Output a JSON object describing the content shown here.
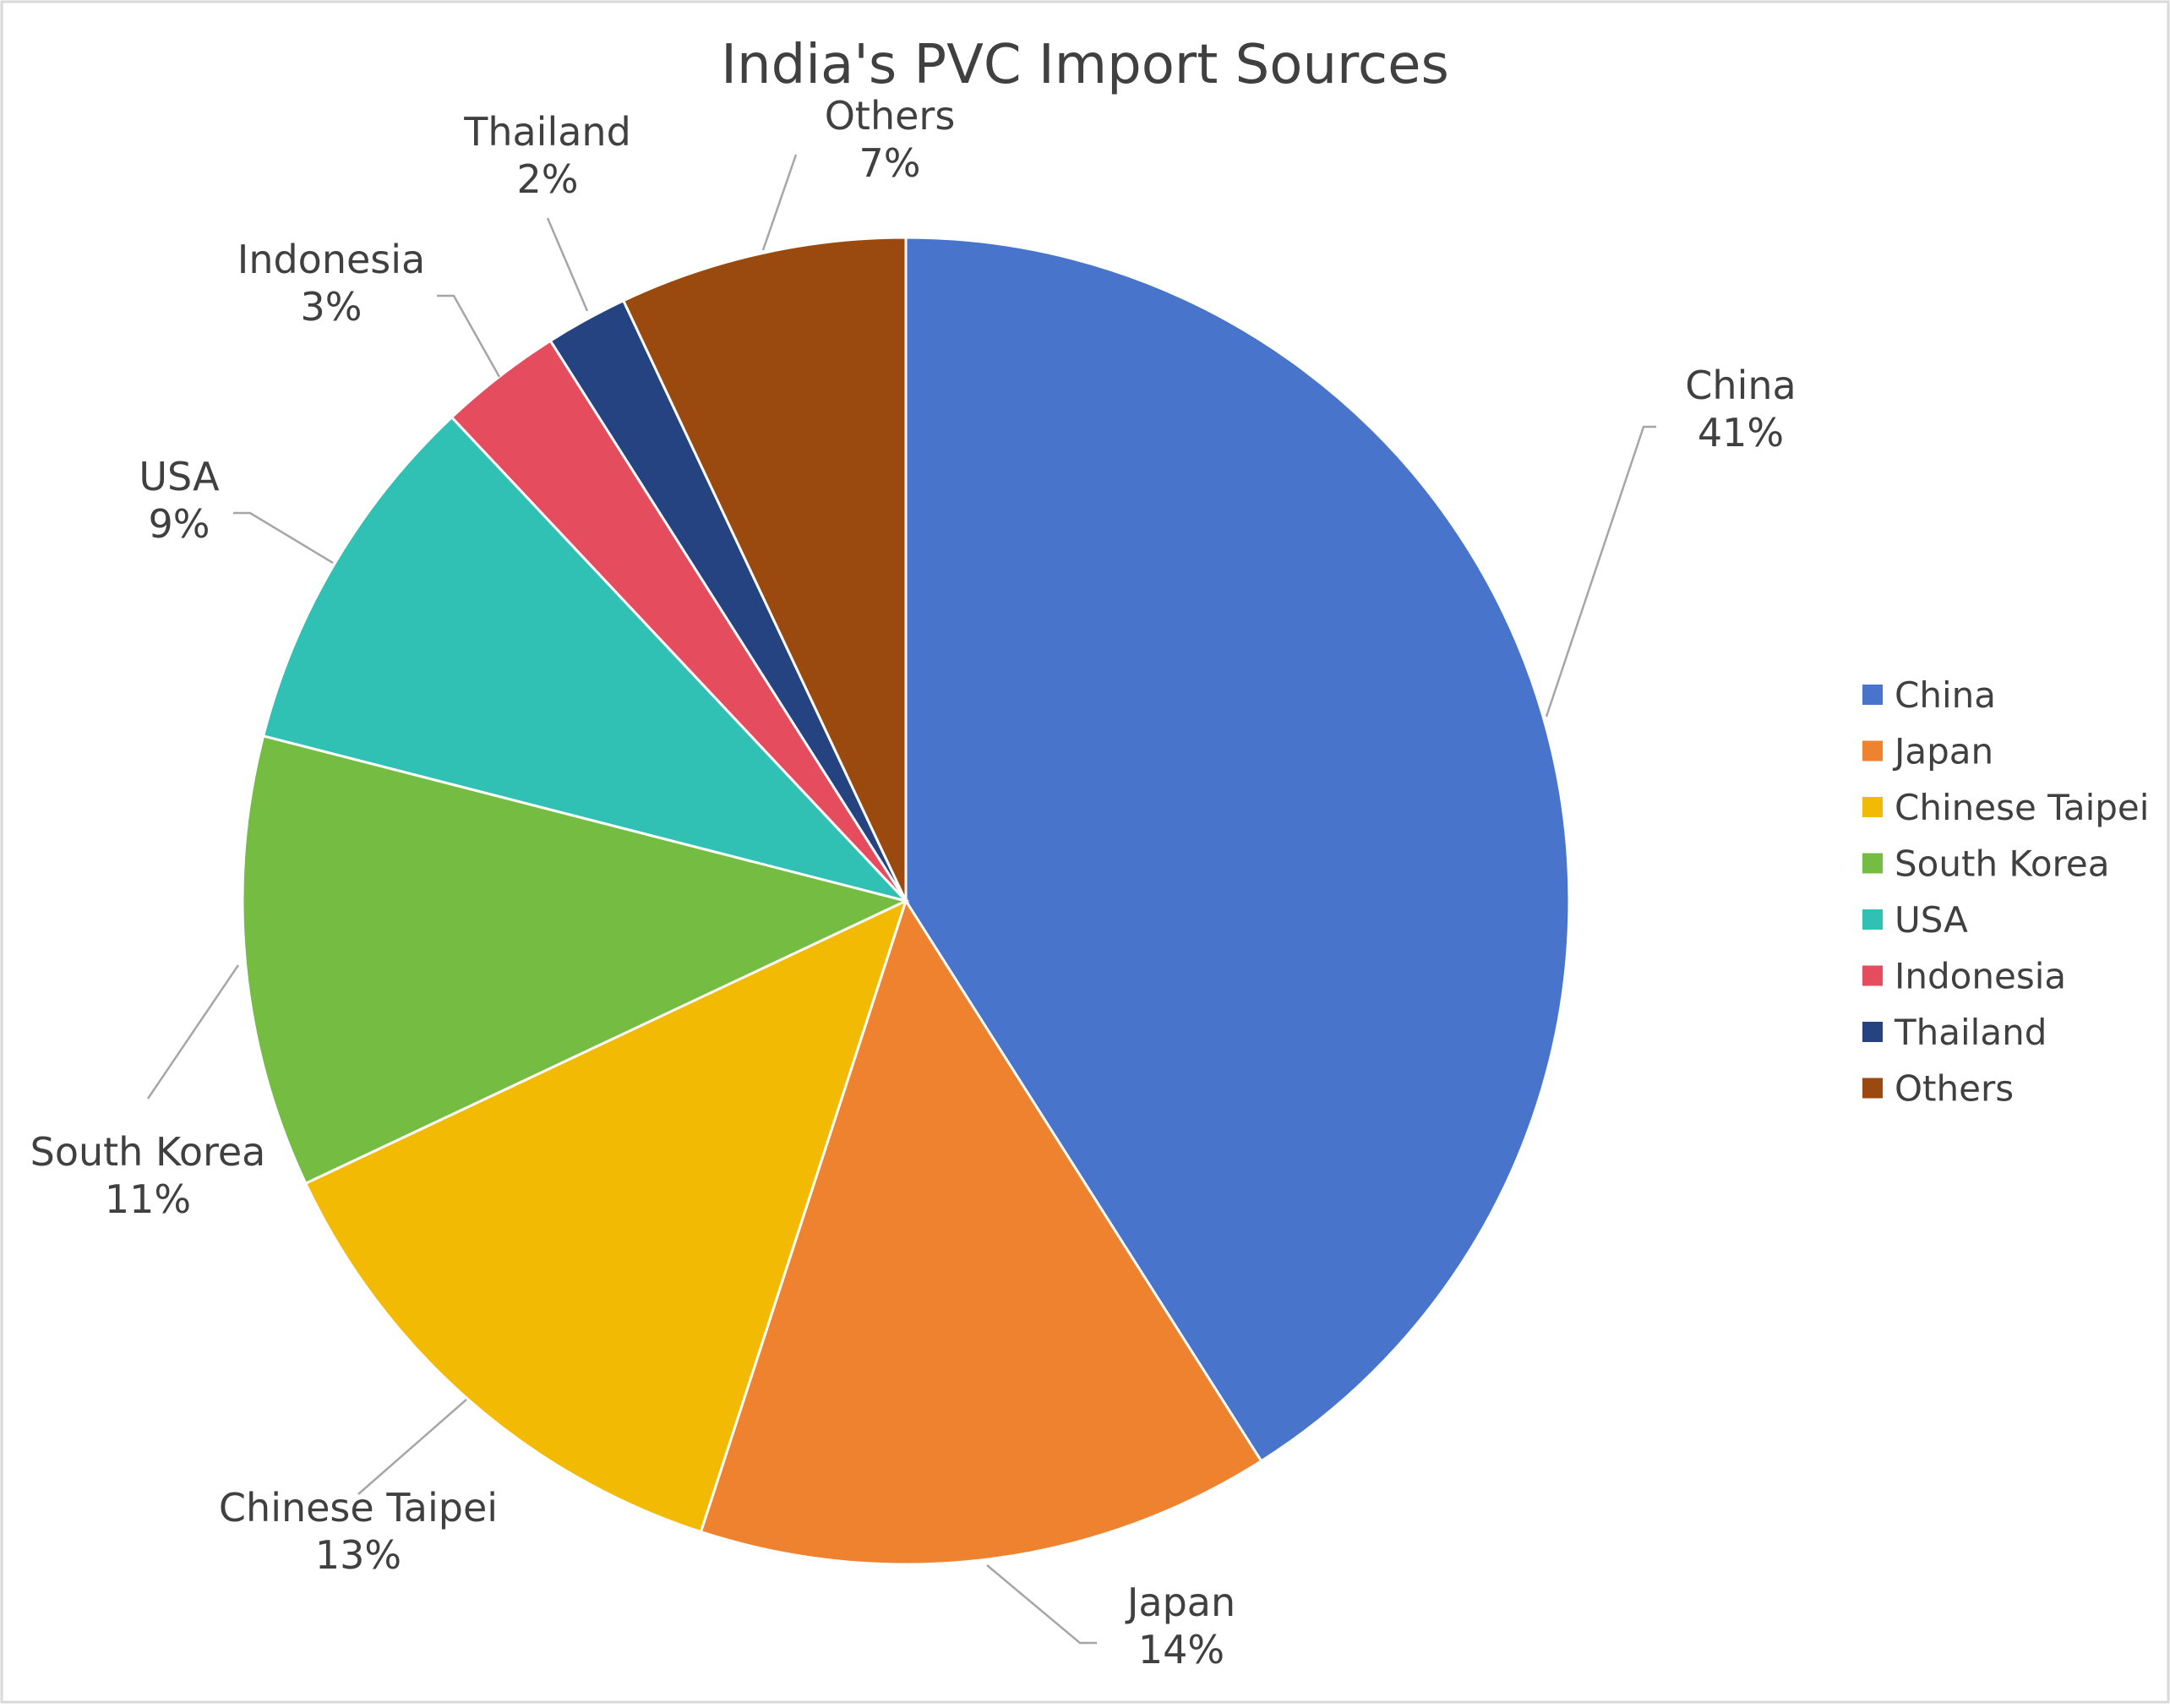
{
  "chart_data": {
    "type": "pie",
    "title": "India's PVC Import Sources",
    "slices": [
      {
        "name": "China",
        "value": 41,
        "label": "41%",
        "color": "#4874CB"
      },
      {
        "name": "Japan",
        "value": 14,
        "label": "14%",
        "color": "#EE822F"
      },
      {
        "name": "Chinese Taipei",
        "value": 13,
        "label": "13%",
        "color": "#F2BA02"
      },
      {
        "name": "South Korea",
        "value": 11,
        "label": "11%",
        "color": "#75BD42"
      },
      {
        "name": "USA",
        "value": 9,
        "label": "9%",
        "color": "#30C0B4"
      },
      {
        "name": "Indonesia",
        "value": 3,
        "label": "3%",
        "color": "#E54C5E"
      },
      {
        "name": "Thailand",
        "value": 2,
        "label": "2%",
        "color": "#254281"
      },
      {
        "name": "Others",
        "value": 7,
        "label": "7%",
        "color": "#9A4A0E"
      }
    ],
    "legend_position": "right",
    "data_labels": "category and percentage, outside with leader lines"
  }
}
